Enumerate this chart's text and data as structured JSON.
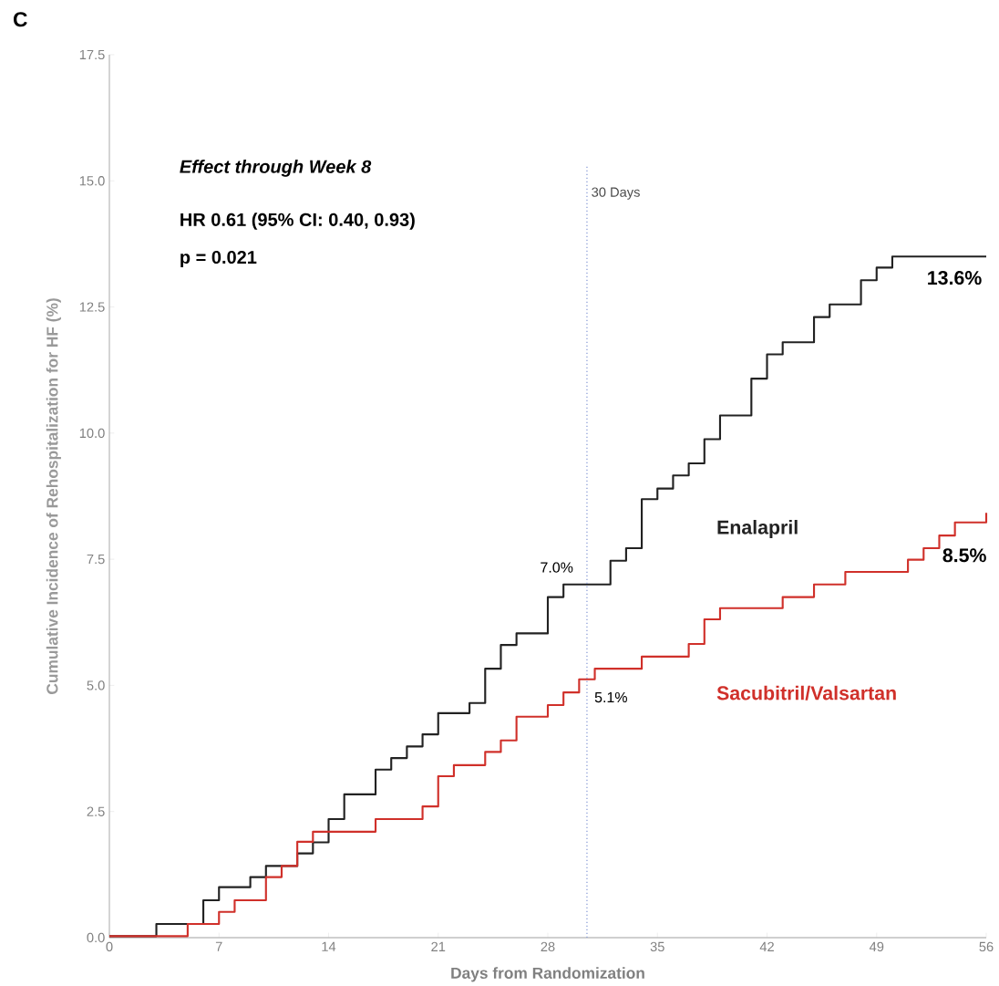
{
  "chart_data": {
    "type": "step",
    "xlabel": "Days from Randomization",
    "ylabel": "Cumulative Incidence of Rehospitalization for HF (%)",
    "xlim": [
      0,
      56
    ],
    "ylim": [
      0,
      17.5
    ],
    "xticks": [
      0,
      7,
      14,
      21,
      28,
      35,
      42,
      49,
      56
    ],
    "yticks": [
      {
        "value": 0,
        "label": "0.0"
      },
      {
        "value": 2.5,
        "label": "2.5"
      },
      {
        "value": 5,
        "label": "5.0"
      },
      {
        "value": 7.5,
        "label": "7.5"
      },
      {
        "value": 10,
        "label": "10.0"
      },
      {
        "value": 12.5,
        "label": "12.5"
      },
      {
        "value": 15,
        "label": "15.0"
      },
      {
        "value": 17.5,
        "label": "17.5"
      }
    ],
    "grid": false,
    "legend": false,
    "marker": "none",
    "line_style": "solid",
    "series": [
      {
        "name": "Enalapril",
        "color": "#222222",
        "x": [
          0,
          3,
          6,
          7,
          9,
          10,
          12,
          13,
          14,
          15,
          17,
          18,
          19,
          20,
          21,
          23,
          24,
          25,
          26,
          28,
          29,
          32,
          33,
          34,
          35,
          36,
          37,
          38,
          39,
          41,
          42,
          43,
          45,
          46,
          48,
          49,
          50,
          56
        ],
        "values": [
          0.03,
          0.27,
          0.74,
          1.0,
          1.2,
          1.42,
          1.67,
          1.89,
          2.35,
          2.84,
          3.33,
          3.56,
          3.79,
          4.03,
          4.45,
          4.65,
          5.33,
          5.8,
          6.03,
          6.75,
          7.0,
          7.47,
          7.72,
          8.69,
          8.9,
          9.16,
          9.4,
          9.88,
          10.35,
          11.08,
          11.56,
          11.8,
          12.3,
          12.55,
          13.03,
          13.28,
          13.5,
          13.5
        ]
      },
      {
        "name": "Sacubitril/Valsartan",
        "color": "#d0302a",
        "x": [
          0,
          5,
          7,
          8,
          10,
          11,
          12,
          13,
          17,
          20,
          21,
          22,
          24,
          25,
          26,
          28,
          29,
          30,
          31,
          34,
          37,
          38,
          39,
          43,
          45,
          47,
          51,
          52,
          53,
          54,
          56
        ],
        "values": [
          0.03,
          0.27,
          0.51,
          0.74,
          1.2,
          1.42,
          1.9,
          2.1,
          2.35,
          2.6,
          3.2,
          3.42,
          3.68,
          3.91,
          4.38,
          4.61,
          4.86,
          5.12,
          5.33,
          5.57,
          5.82,
          6.31,
          6.53,
          6.75,
          7.0,
          7.25,
          7.49,
          7.72,
          7.97,
          8.23,
          8.42
        ]
      }
    ],
    "ref_lines": [
      {
        "axis": "x",
        "value": 30.5,
        "label": "30 Days",
        "color": "#8fa0d8",
        "line_style": "dotted"
      }
    ],
    "annotations": [
      "C",
      "Effect through Week 8",
      "HR 0.61 (95% CI: 0.40, 0.93)",
      "p = 0.021",
      "7.0%",
      "5.1%",
      "13.6%",
      "8.5%"
    ]
  }
}
